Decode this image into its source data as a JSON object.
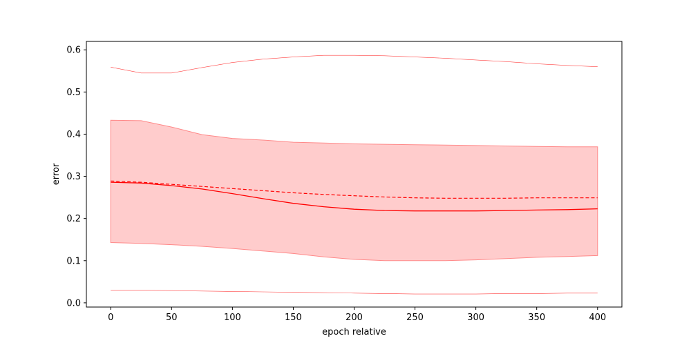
{
  "chart_data": {
    "type": "line",
    "xlabel": "epoch relative",
    "ylabel": "error",
    "xlim": [
      -20,
      420
    ],
    "ylim": [
      -0.01,
      0.62
    ],
    "x_ticks": [
      0,
      50,
      100,
      150,
      200,
      250,
      300,
      350,
      400
    ],
    "y_ticks": [
      0.0,
      0.1,
      0.2,
      0.3,
      0.4,
      0.5,
      0.6
    ],
    "x_tick_labels": [
      "0",
      "50",
      "100",
      "150",
      "200",
      "250",
      "300",
      "350",
      "400"
    ],
    "y_tick_labels": [
      "0.0",
      "0.1",
      "0.2",
      "0.3",
      "0.4",
      "0.5",
      "0.6"
    ],
    "grid": false,
    "colors": {
      "line": "#ff0000",
      "band_fill": "#ffcccc",
      "band_edge": "#ff8888"
    },
    "x": [
      0,
      25,
      50,
      75,
      100,
      125,
      150,
      175,
      200,
      225,
      250,
      275,
      300,
      325,
      350,
      375,
      400
    ],
    "series": [
      {
        "style": "solid",
        "values": [
          0.286,
          0.284,
          0.278,
          0.27,
          0.259,
          0.247,
          0.236,
          0.228,
          0.222,
          0.219,
          0.218,
          0.218,
          0.218,
          0.219,
          0.22,
          0.221,
          0.223
        ]
      },
      {
        "style": "dashed",
        "values": [
          0.289,
          0.286,
          0.281,
          0.276,
          0.271,
          0.266,
          0.261,
          0.257,
          0.254,
          0.251,
          0.249,
          0.248,
          0.248,
          0.248,
          0.249,
          0.249,
          0.249
        ]
      },
      {
        "style": "thin",
        "values": [
          0.559,
          0.545,
          0.545,
          0.558,
          0.57,
          0.578,
          0.583,
          0.587,
          0.587,
          0.586,
          0.583,
          0.58,
          0.576,
          0.572,
          0.567,
          0.563,
          0.56
        ]
      },
      {
        "style": "thin",
        "values": [
          0.03,
          0.03,
          0.029,
          0.028,
          0.027,
          0.026,
          0.025,
          0.024,
          0.023,
          0.022,
          0.021,
          0.021,
          0.021,
          0.022,
          0.022,
          0.023,
          0.023
        ]
      }
    ],
    "band": {
      "upper": [
        0.433,
        0.432,
        0.417,
        0.399,
        0.39,
        0.386,
        0.381,
        0.379,
        0.377,
        0.376,
        0.375,
        0.374,
        0.373,
        0.372,
        0.371,
        0.37,
        0.37
      ],
      "lower": [
        0.143,
        0.141,
        0.138,
        0.134,
        0.129,
        0.123,
        0.117,
        0.109,
        0.103,
        0.1,
        0.1,
        0.1,
        0.102,
        0.105,
        0.108,
        0.11,
        0.112
      ]
    }
  }
}
